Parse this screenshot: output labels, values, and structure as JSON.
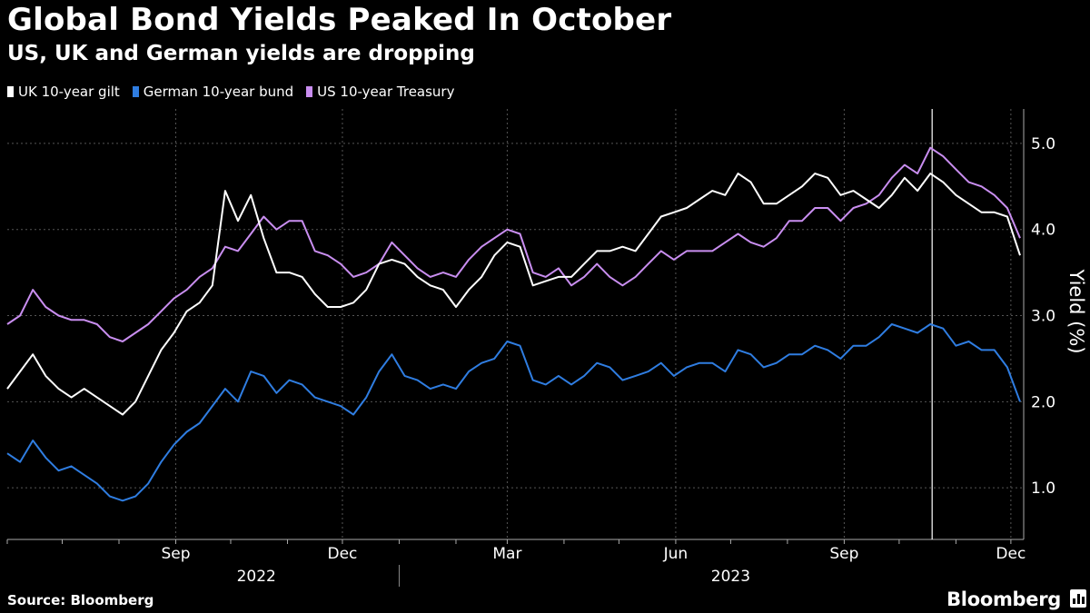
{
  "header": {
    "title": "Global Bond Yields Peaked In October",
    "subtitle": "US, UK and German yields are dropping"
  },
  "footer": {
    "source": "Source: Bloomberg",
    "brand": "Bloomberg"
  },
  "colors": {
    "background": "#000000",
    "uk": "#ffffff",
    "german": "#2f7de1",
    "us": "#c98ef0",
    "grid": "#555555"
  },
  "icons": [
    "bloomberg-bar-chart-icon"
  ],
  "chart_data": {
    "type": "line",
    "title": "Global Bond Yields Peaked In October",
    "subtitle": "US, UK and German yields are dropping",
    "ylabel": "Yield (%)",
    "xlabel": "",
    "ylim": [
      0.4,
      5.4
    ],
    "yticks": [
      1.0,
      2.0,
      3.0,
      4.0,
      5.0
    ],
    "ytick_labels": [
      "1.0",
      "2.0",
      "3.0",
      "4.0",
      "5.0"
    ],
    "xlim": [
      "2022-06-01",
      "2023-12-08"
    ],
    "xticks": [
      {
        "date": "2022-09-01",
        "label": "Sep"
      },
      {
        "date": "2022-12-01",
        "label": "Dec"
      },
      {
        "date": "2023-03-01",
        "label": "Mar"
      },
      {
        "date": "2023-06-01",
        "label": "Jun"
      },
      {
        "date": "2023-09-01",
        "label": "Sep"
      },
      {
        "date": "2023-12-01",
        "label": "Dec"
      }
    ],
    "year_labels": [
      {
        "date": "2022-10-15",
        "label": "2022"
      },
      {
        "date": "2023-07-01",
        "label": "2023"
      }
    ],
    "year_divider": "2023-01-01",
    "annotation": {
      "date": "2023-10-19",
      "label": "Peak (vertical line)"
    },
    "grid": true,
    "legend_position": "top-left",
    "series": [
      {
        "name": "UK 10-year gilt",
        "color": "#ffffff",
        "points": [
          [
            "2022-06-01",
            2.15
          ],
          [
            "2022-06-08",
            2.35
          ],
          [
            "2022-06-15",
            2.55
          ],
          [
            "2022-06-22",
            2.3
          ],
          [
            "2022-06-29",
            2.15
          ],
          [
            "2022-07-06",
            2.05
          ],
          [
            "2022-07-13",
            2.15
          ],
          [
            "2022-07-20",
            2.05
          ],
          [
            "2022-07-27",
            1.95
          ],
          [
            "2022-08-03",
            1.85
          ],
          [
            "2022-08-10",
            2.0
          ],
          [
            "2022-08-17",
            2.3
          ],
          [
            "2022-08-24",
            2.6
          ],
          [
            "2022-08-31",
            2.8
          ],
          [
            "2022-09-07",
            3.05
          ],
          [
            "2022-09-14",
            3.15
          ],
          [
            "2022-09-21",
            3.35
          ],
          [
            "2022-09-28",
            4.45
          ],
          [
            "2022-10-05",
            4.1
          ],
          [
            "2022-10-12",
            4.4
          ],
          [
            "2022-10-19",
            3.9
          ],
          [
            "2022-10-26",
            3.5
          ],
          [
            "2022-11-02",
            3.5
          ],
          [
            "2022-11-09",
            3.45
          ],
          [
            "2022-11-16",
            3.25
          ],
          [
            "2022-11-23",
            3.1
          ],
          [
            "2022-11-30",
            3.1
          ],
          [
            "2022-12-07",
            3.15
          ],
          [
            "2022-12-14",
            3.3
          ],
          [
            "2022-12-21",
            3.6
          ],
          [
            "2022-12-28",
            3.65
          ],
          [
            "2023-01-04",
            3.6
          ],
          [
            "2023-01-11",
            3.45
          ],
          [
            "2023-01-18",
            3.35
          ],
          [
            "2023-01-25",
            3.3
          ],
          [
            "2023-02-01",
            3.1
          ],
          [
            "2023-02-08",
            3.3
          ],
          [
            "2023-02-15",
            3.45
          ],
          [
            "2023-02-22",
            3.7
          ],
          [
            "2023-03-01",
            3.85
          ],
          [
            "2023-03-08",
            3.8
          ],
          [
            "2023-03-15",
            3.35
          ],
          [
            "2023-03-22",
            3.4
          ],
          [
            "2023-03-29",
            3.45
          ],
          [
            "2023-04-05",
            3.45
          ],
          [
            "2023-04-12",
            3.6
          ],
          [
            "2023-04-19",
            3.75
          ],
          [
            "2023-04-26",
            3.75
          ],
          [
            "2023-05-03",
            3.8
          ],
          [
            "2023-05-10",
            3.75
          ],
          [
            "2023-05-17",
            3.95
          ],
          [
            "2023-05-24",
            4.15
          ],
          [
            "2023-05-31",
            4.2
          ],
          [
            "2023-06-07",
            4.25
          ],
          [
            "2023-06-14",
            4.35
          ],
          [
            "2023-06-21",
            4.45
          ],
          [
            "2023-06-28",
            4.4
          ],
          [
            "2023-07-05",
            4.65
          ],
          [
            "2023-07-12",
            4.55
          ],
          [
            "2023-07-19",
            4.3
          ],
          [
            "2023-07-26",
            4.3
          ],
          [
            "2023-08-02",
            4.4
          ],
          [
            "2023-08-09",
            4.5
          ],
          [
            "2023-08-16",
            4.65
          ],
          [
            "2023-08-23",
            4.6
          ],
          [
            "2023-08-30",
            4.4
          ],
          [
            "2023-09-06",
            4.45
          ],
          [
            "2023-09-13",
            4.35
          ],
          [
            "2023-09-20",
            4.25
          ],
          [
            "2023-09-27",
            4.4
          ],
          [
            "2023-10-04",
            4.6
          ],
          [
            "2023-10-11",
            4.45
          ],
          [
            "2023-10-18",
            4.65
          ],
          [
            "2023-10-25",
            4.55
          ],
          [
            "2023-11-01",
            4.4
          ],
          [
            "2023-11-08",
            4.3
          ],
          [
            "2023-11-15",
            4.2
          ],
          [
            "2023-11-22",
            4.2
          ],
          [
            "2023-11-29",
            4.15
          ],
          [
            "2023-12-06",
            3.7
          ]
        ]
      },
      {
        "name": "German 10-year bund",
        "color": "#2f7de1",
        "points": [
          [
            "2022-06-01",
            1.4
          ],
          [
            "2022-06-08",
            1.3
          ],
          [
            "2022-06-15",
            1.55
          ],
          [
            "2022-06-22",
            1.35
          ],
          [
            "2022-06-29",
            1.2
          ],
          [
            "2022-07-06",
            1.25
          ],
          [
            "2022-07-13",
            1.15
          ],
          [
            "2022-07-20",
            1.05
          ],
          [
            "2022-07-27",
            0.9
          ],
          [
            "2022-08-03",
            0.85
          ],
          [
            "2022-08-10",
            0.9
          ],
          [
            "2022-08-17",
            1.05
          ],
          [
            "2022-08-24",
            1.3
          ],
          [
            "2022-08-31",
            1.5
          ],
          [
            "2022-09-07",
            1.65
          ],
          [
            "2022-09-14",
            1.75
          ],
          [
            "2022-09-21",
            1.95
          ],
          [
            "2022-09-28",
            2.15
          ],
          [
            "2022-10-05",
            2.0
          ],
          [
            "2022-10-12",
            2.35
          ],
          [
            "2022-10-19",
            2.3
          ],
          [
            "2022-10-26",
            2.1
          ],
          [
            "2022-11-02",
            2.25
          ],
          [
            "2022-11-09",
            2.2
          ],
          [
            "2022-11-16",
            2.05
          ],
          [
            "2022-11-23",
            2.0
          ],
          [
            "2022-11-30",
            1.95
          ],
          [
            "2022-12-07",
            1.85
          ],
          [
            "2022-12-14",
            2.05
          ],
          [
            "2022-12-21",
            2.35
          ],
          [
            "2022-12-28",
            2.55
          ],
          [
            "2023-01-04",
            2.3
          ],
          [
            "2023-01-11",
            2.25
          ],
          [
            "2023-01-18",
            2.15
          ],
          [
            "2023-01-25",
            2.2
          ],
          [
            "2023-02-01",
            2.15
          ],
          [
            "2023-02-08",
            2.35
          ],
          [
            "2023-02-15",
            2.45
          ],
          [
            "2023-02-22",
            2.5
          ],
          [
            "2023-03-01",
            2.7
          ],
          [
            "2023-03-08",
            2.65
          ],
          [
            "2023-03-15",
            2.25
          ],
          [
            "2023-03-22",
            2.2
          ],
          [
            "2023-03-29",
            2.3
          ],
          [
            "2023-04-05",
            2.2
          ],
          [
            "2023-04-12",
            2.3
          ],
          [
            "2023-04-19",
            2.45
          ],
          [
            "2023-04-26",
            2.4
          ],
          [
            "2023-05-03",
            2.25
          ],
          [
            "2023-05-10",
            2.3
          ],
          [
            "2023-05-17",
            2.35
          ],
          [
            "2023-05-24",
            2.45
          ],
          [
            "2023-05-31",
            2.3
          ],
          [
            "2023-06-07",
            2.4
          ],
          [
            "2023-06-14",
            2.45
          ],
          [
            "2023-06-21",
            2.45
          ],
          [
            "2023-06-28",
            2.35
          ],
          [
            "2023-07-05",
            2.6
          ],
          [
            "2023-07-12",
            2.55
          ],
          [
            "2023-07-19",
            2.4
          ],
          [
            "2023-07-26",
            2.45
          ],
          [
            "2023-08-02",
            2.55
          ],
          [
            "2023-08-09",
            2.55
          ],
          [
            "2023-08-16",
            2.65
          ],
          [
            "2023-08-23",
            2.6
          ],
          [
            "2023-08-30",
            2.5
          ],
          [
            "2023-09-06",
            2.65
          ],
          [
            "2023-09-13",
            2.65
          ],
          [
            "2023-09-20",
            2.75
          ],
          [
            "2023-09-27",
            2.9
          ],
          [
            "2023-10-04",
            2.85
          ],
          [
            "2023-10-11",
            2.8
          ],
          [
            "2023-10-18",
            2.9
          ],
          [
            "2023-10-25",
            2.85
          ],
          [
            "2023-11-01",
            2.65
          ],
          [
            "2023-11-08",
            2.7
          ],
          [
            "2023-11-15",
            2.6
          ],
          [
            "2023-11-22",
            2.6
          ],
          [
            "2023-11-29",
            2.4
          ],
          [
            "2023-12-06",
            2.0
          ]
        ]
      },
      {
        "name": "US 10-year Treasury",
        "color": "#c98ef0",
        "points": [
          [
            "2022-06-01",
            2.9
          ],
          [
            "2022-06-08",
            3.0
          ],
          [
            "2022-06-15",
            3.3
          ],
          [
            "2022-06-22",
            3.1
          ],
          [
            "2022-06-29",
            3.0
          ],
          [
            "2022-07-06",
            2.95
          ],
          [
            "2022-07-13",
            2.95
          ],
          [
            "2022-07-20",
            2.9
          ],
          [
            "2022-07-27",
            2.75
          ],
          [
            "2022-08-03",
            2.7
          ],
          [
            "2022-08-10",
            2.8
          ],
          [
            "2022-08-17",
            2.9
          ],
          [
            "2022-08-24",
            3.05
          ],
          [
            "2022-08-31",
            3.2
          ],
          [
            "2022-09-07",
            3.3
          ],
          [
            "2022-09-14",
            3.45
          ],
          [
            "2022-09-21",
            3.55
          ],
          [
            "2022-09-28",
            3.8
          ],
          [
            "2022-10-05",
            3.75
          ],
          [
            "2022-10-12",
            3.95
          ],
          [
            "2022-10-19",
            4.15
          ],
          [
            "2022-10-26",
            4.0
          ],
          [
            "2022-11-02",
            4.1
          ],
          [
            "2022-11-09",
            4.1
          ],
          [
            "2022-11-16",
            3.75
          ],
          [
            "2022-11-23",
            3.7
          ],
          [
            "2022-11-30",
            3.6
          ],
          [
            "2022-12-07",
            3.45
          ],
          [
            "2022-12-14",
            3.5
          ],
          [
            "2022-12-21",
            3.6
          ],
          [
            "2022-12-28",
            3.85
          ],
          [
            "2023-01-04",
            3.7
          ],
          [
            "2023-01-11",
            3.55
          ],
          [
            "2023-01-18",
            3.45
          ],
          [
            "2023-01-25",
            3.5
          ],
          [
            "2023-02-01",
            3.45
          ],
          [
            "2023-02-08",
            3.65
          ],
          [
            "2023-02-15",
            3.8
          ],
          [
            "2023-02-22",
            3.9
          ],
          [
            "2023-03-01",
            4.0
          ],
          [
            "2023-03-08",
            3.95
          ],
          [
            "2023-03-15",
            3.5
          ],
          [
            "2023-03-22",
            3.45
          ],
          [
            "2023-03-29",
            3.55
          ],
          [
            "2023-04-05",
            3.35
          ],
          [
            "2023-04-12",
            3.45
          ],
          [
            "2023-04-19",
            3.6
          ],
          [
            "2023-04-26",
            3.45
          ],
          [
            "2023-05-03",
            3.35
          ],
          [
            "2023-05-10",
            3.45
          ],
          [
            "2023-05-17",
            3.6
          ],
          [
            "2023-05-24",
            3.75
          ],
          [
            "2023-05-31",
            3.65
          ],
          [
            "2023-06-07",
            3.75
          ],
          [
            "2023-06-14",
            3.75
          ],
          [
            "2023-06-21",
            3.75
          ],
          [
            "2023-06-28",
            3.85
          ],
          [
            "2023-07-05",
            3.95
          ],
          [
            "2023-07-12",
            3.85
          ],
          [
            "2023-07-19",
            3.8
          ],
          [
            "2023-07-26",
            3.9
          ],
          [
            "2023-08-02",
            4.1
          ],
          [
            "2023-08-09",
            4.1
          ],
          [
            "2023-08-16",
            4.25
          ],
          [
            "2023-08-23",
            4.25
          ],
          [
            "2023-08-30",
            4.1
          ],
          [
            "2023-09-06",
            4.25
          ],
          [
            "2023-09-13",
            4.3
          ],
          [
            "2023-09-20",
            4.4
          ],
          [
            "2023-09-27",
            4.6
          ],
          [
            "2023-10-04",
            4.75
          ],
          [
            "2023-10-11",
            4.65
          ],
          [
            "2023-10-18",
            4.95
          ],
          [
            "2023-10-25",
            4.85
          ],
          [
            "2023-11-01",
            4.7
          ],
          [
            "2023-11-08",
            4.55
          ],
          [
            "2023-11-15",
            4.5
          ],
          [
            "2023-11-22",
            4.4
          ],
          [
            "2023-11-29",
            4.25
          ],
          [
            "2023-12-06",
            3.9
          ]
        ]
      }
    ]
  }
}
